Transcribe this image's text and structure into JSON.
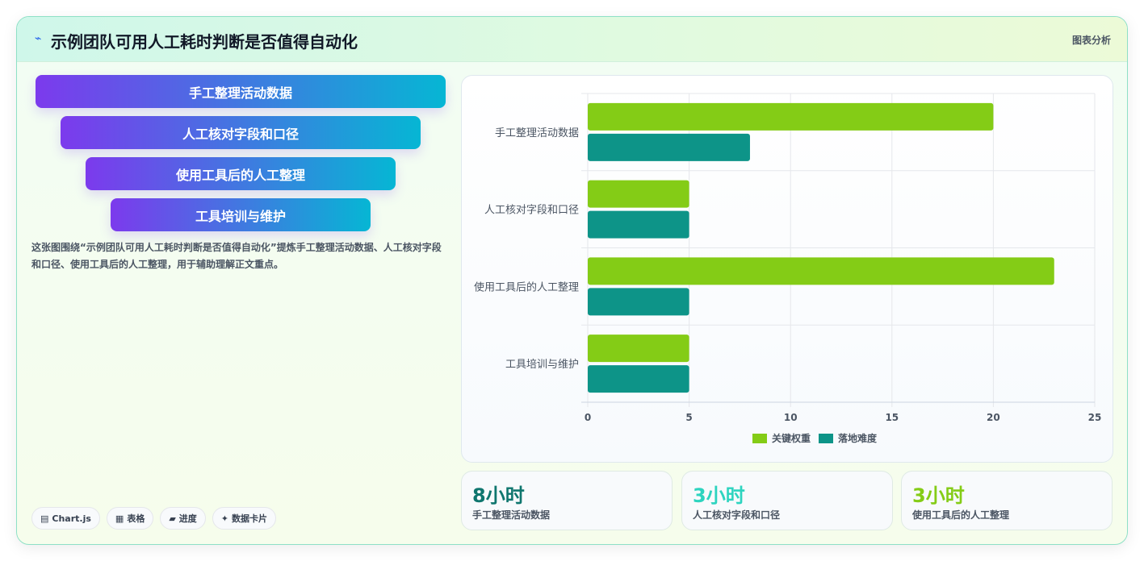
{
  "header": {
    "title": "示例团队可用人工耗时判断是否值得自动化",
    "tag": "图表分析",
    "icon": "sparkle-icon"
  },
  "funnel": {
    "items": [
      "手工整理活动数据",
      "人工核对字段和口径",
      "使用工具后的人工整理",
      "工具培训与维护"
    ],
    "gradient": [
      "#7c3aed",
      "#06b6d4"
    ]
  },
  "description": "这张图围绕“示例团队可用人工耗时判断是否值得自动化”提炼手工整理活动数据、人工核对字段和口径、使用工具后的人工整理，用于辅助理解正文重点。",
  "chips": [
    {
      "icon": "chart-icon",
      "glyph": "▤",
      "label": "Chart.js"
    },
    {
      "icon": "table-icon",
      "glyph": "▦",
      "label": "表格"
    },
    {
      "icon": "progress-icon",
      "glyph": "▰",
      "label": "进度"
    },
    {
      "icon": "card-icon",
      "glyph": "✦",
      "label": "数据卡片"
    }
  ],
  "chart_data": {
    "type": "bar",
    "orientation": "horizontal",
    "categories": [
      "手工整理活动数据",
      "人工核对字段和口径",
      "使用工具后的人工整理",
      "工具培训与维护"
    ],
    "series": [
      {
        "name": "关键权重",
        "values": [
          20,
          5,
          23,
          5
        ],
        "color": "#84cc16"
      },
      {
        "name": "落地难度",
        "values": [
          8,
          5,
          5,
          5
        ],
        "color": "#0d9488"
      }
    ],
    "xlim": [
      0,
      25
    ],
    "xticks": [
      0,
      5,
      10,
      15,
      20,
      25
    ],
    "grid": true,
    "legend": "bottom"
  },
  "kpis": [
    {
      "value": "8小时",
      "label": "手工整理活动数据",
      "color": "#0f766e"
    },
    {
      "value": "3小时",
      "label": "人工核对字段和口径",
      "color": "#2dd4bf"
    },
    {
      "value": "3小时",
      "label": "使用工具后的人工整理",
      "color": "#84cc16"
    }
  ]
}
